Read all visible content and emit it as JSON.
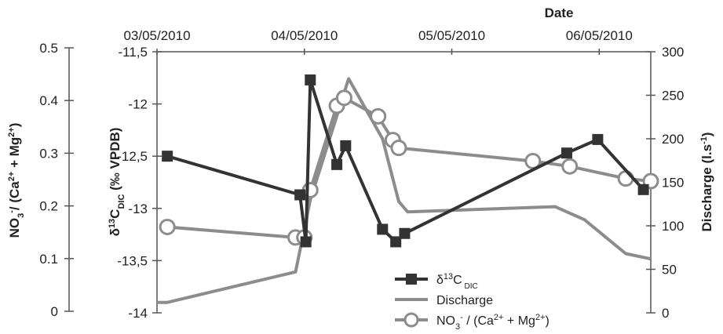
{
  "chart_data": {
    "type": "line",
    "x_axis": {
      "title": "Date",
      "tick_labels": [
        "03/05/2010",
        "04/05/2010",
        "05/05/2010",
        "06/05/2010"
      ],
      "range_days": [
        0,
        3.35
      ]
    },
    "axes": {
      "outer_left": {
        "label_main": "NO",
        "label_sub1": "3",
        "label_sup1": "-",
        "label_mid": "/ (Ca",
        "label_sup2": "2+",
        "label_mid2": " + Mg",
        "label_sup3": "2+",
        "label_end": ")",
        "range": [
          0,
          0.5
        ],
        "ticks": [
          "0.5",
          "0.4",
          "0.3",
          "0.2",
          "0.1",
          "0"
        ]
      },
      "inner_left": {
        "label_main": "δ",
        "label_sup": "13",
        "label_c": "C",
        "label_sub": "DIC",
        "label_end": " (‰ VPDB)",
        "range": [
          -14,
          -11.5
        ],
        "ticks": [
          "-11,5",
          "-12",
          "-12,5",
          "-13",
          "-13,5",
          "-14"
        ]
      },
      "right": {
        "label_main": "Discharge (l.s",
        "label_sup": "-1",
        "label_end": ")",
        "range": [
          0,
          300
        ],
        "ticks": [
          "300",
          "250",
          "200",
          "150",
          "100",
          "50",
          "0"
        ]
      }
    },
    "series": [
      {
        "name": "δ13C DIC",
        "legend_main": "δ",
        "legend_sup": "13",
        "legend_c": "C",
        "legend_sub": "DIC",
        "axis": "inner_left",
        "color": "#333333",
        "marker": "square",
        "x": [
          0.07,
          0.97,
          1.01,
          1.04,
          1.22,
          1.28,
          1.53,
          1.62,
          1.68,
          2.78,
          2.99,
          3.3
        ],
        "y": [
          -12.5,
          -12.87,
          -13.32,
          -11.77,
          -12.58,
          -12.4,
          -13.2,
          -13.32,
          -13.24,
          -12.47,
          -12.34,
          -12.82
        ]
      },
      {
        "name": "Discharge",
        "legend_main": "Discharge",
        "axis": "right",
        "color": "#8c8c8c",
        "marker": "none",
        "x": [
          0.0,
          0.07,
          0.94,
          1.04,
          1.3,
          1.53,
          1.64,
          1.7,
          2.7,
          2.9,
          3.18,
          3.35
        ],
        "y": [
          12,
          12,
          47,
          130,
          269,
          200,
          128,
          116,
          122,
          107,
          68,
          62
        ]
      },
      {
        "name": "NO3- / (Ca2+ + Mg2+)",
        "legend_main": "NO",
        "legend_sub": "3",
        "legend_sup1": "-",
        "legend_mid": " / (Ca",
        "legend_sup2": "2+",
        "legend_mid2": " + Mg",
        "legend_sup3": "2+",
        "legend_end": ")",
        "axis": "outer_left",
        "color": "#8c8c8c",
        "marker": "circle",
        "x": [
          0.07,
          0.94,
          1.0,
          1.04,
          1.22,
          1.27,
          1.5,
          1.6,
          1.64,
          2.55,
          2.8,
          3.18,
          3.35
        ],
        "y": [
          0.16,
          0.14,
          0.14,
          0.23,
          0.39,
          0.405,
          0.37,
          0.325,
          0.31,
          0.285,
          0.275,
          0.252,
          0.247
        ]
      }
    ],
    "legend_position": "bottom-center",
    "grid": false
  }
}
